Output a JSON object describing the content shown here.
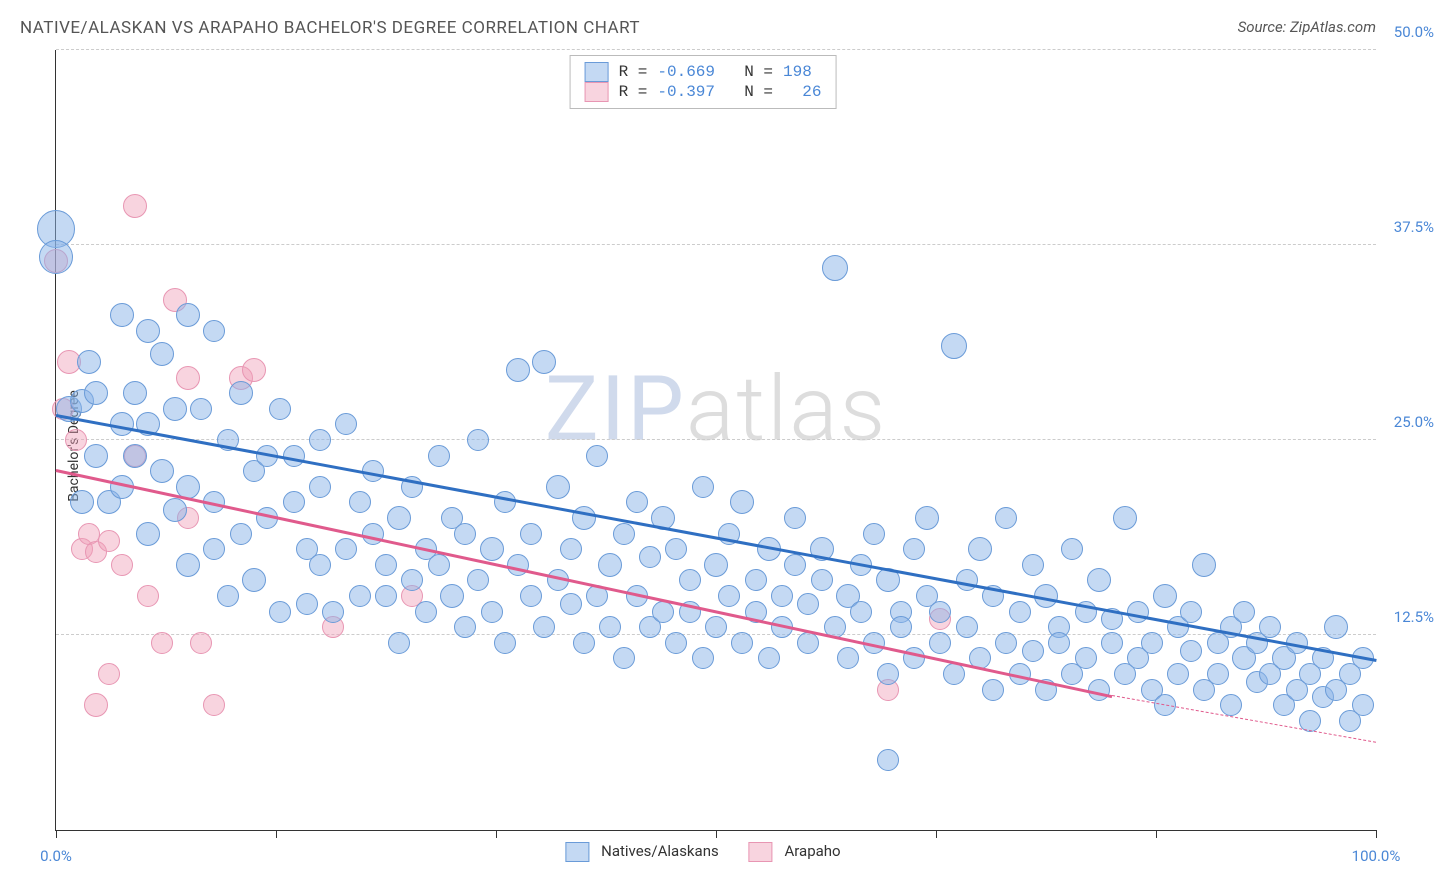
{
  "title": "NATIVE/ALASKAN VS ARAPAHO BACHELOR'S DEGREE CORRELATION CHART",
  "source": "Source: ZipAtlas.com",
  "ylabel": "Bachelor's Degree",
  "watermark_zip": "ZIP",
  "watermark_rest": "atlas",
  "chart": {
    "type": "scatter",
    "xlim": [
      0,
      100
    ],
    "ylim": [
      0,
      50
    ],
    "x_ticks": [
      0,
      16.67,
      33.33,
      50,
      66.67,
      83.33,
      100
    ],
    "x_tick_labels": {
      "0": "0.0%",
      "100": "100.0%"
    },
    "y_ticks": [
      12.5,
      25.0,
      37.5,
      50.0
    ],
    "y_tick_labels": [
      "12.5%",
      "25.0%",
      "37.5%",
      "50.0%"
    ],
    "grid_color": "#cccccc",
    "axis_color": "#333333",
    "label_color": "#4a87d6",
    "plot_bg": "#ffffff"
  },
  "series": {
    "blue": {
      "label": "Natives/Alaskans",
      "fill": "rgba(137,179,231,0.5)",
      "stroke": "#6a9bd8",
      "trend_color": "#2f6fc2",
      "R": "-0.669",
      "N": "198",
      "trend": {
        "x1": 0,
        "y1": 26.5,
        "x2": 100,
        "y2": 10.8
      },
      "points": [
        [
          0,
          38.5,
          18
        ],
        [
          0,
          36.7,
          16
        ],
        [
          1,
          27,
          12
        ],
        [
          2,
          27.5,
          11
        ],
        [
          2,
          21,
          11
        ],
        [
          2.5,
          30,
          11
        ],
        [
          3,
          24,
          11
        ],
        [
          3,
          28,
          11
        ],
        [
          4,
          21,
          11
        ],
        [
          5,
          33,
          11
        ],
        [
          5,
          26,
          11
        ],
        [
          5,
          22,
          11
        ],
        [
          6,
          24,
          11
        ],
        [
          6,
          28,
          11
        ],
        [
          7,
          32,
          11
        ],
        [
          7,
          19,
          11
        ],
        [
          7,
          26,
          11
        ],
        [
          8,
          30.5,
          11
        ],
        [
          8,
          23,
          11
        ],
        [
          9,
          27,
          11
        ],
        [
          9,
          20.5,
          11
        ],
        [
          10,
          33,
          11
        ],
        [
          10,
          22,
          11
        ],
        [
          10,
          17,
          11
        ],
        [
          11,
          27,
          10
        ],
        [
          12,
          32,
          10
        ],
        [
          12,
          21,
          10
        ],
        [
          12,
          18,
          10
        ],
        [
          13,
          25,
          10
        ],
        [
          13,
          15,
          10
        ],
        [
          14,
          28,
          11
        ],
        [
          14,
          19,
          10
        ],
        [
          15,
          23,
          10
        ],
        [
          15,
          16,
          11
        ],
        [
          16,
          24,
          10
        ],
        [
          16,
          20,
          10
        ],
        [
          17,
          27,
          10
        ],
        [
          17,
          14,
          10
        ],
        [
          18,
          21,
          10
        ],
        [
          18,
          24,
          10
        ],
        [
          19,
          18,
          10
        ],
        [
          19,
          14.5,
          10
        ],
        [
          20,
          25,
          10
        ],
        [
          20,
          17,
          10
        ],
        [
          20,
          22,
          10
        ],
        [
          21,
          14,
          10
        ],
        [
          22,
          26,
          10
        ],
        [
          22,
          18,
          10
        ],
        [
          23,
          21,
          10
        ],
        [
          23,
          15,
          10
        ],
        [
          24,
          19,
          10
        ],
        [
          24,
          23,
          10
        ],
        [
          25,
          17,
          10
        ],
        [
          25,
          15,
          10
        ],
        [
          26,
          20,
          11
        ],
        [
          26,
          12,
          10
        ],
        [
          27,
          22,
          10
        ],
        [
          27,
          16,
          10
        ],
        [
          28,
          18,
          10
        ],
        [
          28,
          14,
          10
        ],
        [
          29,
          24,
          10
        ],
        [
          29,
          17,
          10
        ],
        [
          30,
          15,
          11
        ],
        [
          30,
          20,
          10
        ],
        [
          31,
          13,
          10
        ],
        [
          31,
          19,
          10
        ],
        [
          32,
          25,
          10
        ],
        [
          32,
          16,
          10
        ],
        [
          33,
          18,
          11
        ],
        [
          33,
          14,
          10
        ],
        [
          34,
          21,
          10
        ],
        [
          34,
          12,
          10
        ],
        [
          35,
          29.5,
          11
        ],
        [
          35,
          17,
          10
        ],
        [
          36,
          15,
          10
        ],
        [
          36,
          19,
          10
        ],
        [
          37,
          30,
          11
        ],
        [
          37,
          13,
          10
        ],
        [
          38,
          22,
          11
        ],
        [
          38,
          16,
          10
        ],
        [
          39,
          18,
          10
        ],
        [
          39,
          14.5,
          10
        ],
        [
          40,
          20,
          11
        ],
        [
          40,
          12,
          10
        ],
        [
          41,
          24,
          10
        ],
        [
          41,
          15,
          10
        ],
        [
          42,
          17,
          11
        ],
        [
          42,
          13,
          10
        ],
        [
          43,
          19,
          10
        ],
        [
          43,
          11,
          10
        ],
        [
          44,
          21,
          10
        ],
        [
          44,
          15,
          10
        ],
        [
          45,
          13,
          10
        ],
        [
          45,
          17.5,
          10
        ],
        [
          46,
          20,
          11
        ],
        [
          46,
          14,
          10
        ],
        [
          47,
          18,
          10
        ],
        [
          47,
          12,
          10
        ],
        [
          48,
          16,
          10
        ],
        [
          48,
          14,
          10
        ],
        [
          49,
          22,
          10
        ],
        [
          49,
          11,
          10
        ],
        [
          50,
          17,
          11
        ],
        [
          50,
          13,
          10
        ],
        [
          51,
          19,
          10
        ],
        [
          51,
          15,
          10
        ],
        [
          52,
          21,
          11
        ],
        [
          52,
          12,
          10
        ],
        [
          53,
          16,
          10
        ],
        [
          53,
          14,
          10
        ],
        [
          54,
          18,
          11
        ],
        [
          54,
          11,
          10
        ],
        [
          55,
          15,
          10
        ],
        [
          55,
          13,
          10
        ],
        [
          56,
          20,
          10
        ],
        [
          56,
          17,
          10
        ],
        [
          57,
          12,
          10
        ],
        [
          57,
          14.5,
          10
        ],
        [
          58,
          18,
          11
        ],
        [
          58,
          16,
          10
        ],
        [
          59,
          36,
          12
        ],
        [
          59,
          13,
          10
        ],
        [
          60,
          15,
          11
        ],
        [
          60,
          11,
          10
        ],
        [
          61,
          17,
          10
        ],
        [
          61,
          14,
          10
        ],
        [
          62,
          19,
          10
        ],
        [
          62,
          12,
          10
        ],
        [
          63,
          16,
          11
        ],
        [
          63,
          10,
          10
        ],
        [
          64,
          14,
          10
        ],
        [
          64,
          13,
          10
        ],
        [
          65,
          18,
          10
        ],
        [
          65,
          11,
          10
        ],
        [
          66,
          20,
          11
        ],
        [
          66,
          15,
          10
        ],
        [
          67,
          12,
          10
        ],
        [
          67,
          14,
          10
        ],
        [
          68,
          31,
          12
        ],
        [
          68,
          10,
          10
        ],
        [
          69,
          16,
          10
        ],
        [
          69,
          13,
          10
        ],
        [
          70,
          18,
          11
        ],
        [
          70,
          11,
          10
        ],
        [
          71,
          9,
          10
        ],
        [
          71,
          15,
          10
        ],
        [
          72,
          20,
          10
        ],
        [
          72,
          12,
          10
        ],
        [
          73,
          14,
          10
        ],
        [
          73,
          10,
          10
        ],
        [
          74,
          17,
          10
        ],
        [
          74,
          11.5,
          10
        ],
        [
          75,
          15,
          11
        ],
        [
          75,
          9,
          10
        ],
        [
          76,
          13,
          10
        ],
        [
          76,
          12,
          10
        ],
        [
          77,
          18,
          10
        ],
        [
          77,
          10,
          10
        ],
        [
          78,
          14,
          10
        ],
        [
          78,
          11,
          10
        ],
        [
          79,
          16,
          11
        ],
        [
          79,
          9,
          10
        ],
        [
          80,
          12,
          10
        ],
        [
          80,
          13.5,
          10
        ],
        [
          81,
          20,
          11
        ],
        [
          81,
          10,
          10
        ],
        [
          82,
          14,
          10
        ],
        [
          82,
          11,
          10
        ],
        [
          83,
          9,
          10
        ],
        [
          83,
          12,
          10
        ],
        [
          84,
          15,
          11
        ],
        [
          84,
          8,
          10
        ],
        [
          85,
          13,
          10
        ],
        [
          85,
          10,
          10
        ],
        [
          86,
          14,
          10
        ],
        [
          86,
          11.5,
          10
        ],
        [
          87,
          17,
          11
        ],
        [
          87,
          9,
          10
        ],
        [
          88,
          12,
          10
        ],
        [
          88,
          10,
          10
        ],
        [
          89,
          8,
          10
        ],
        [
          89,
          13,
          10
        ],
        [
          90,
          11,
          11
        ],
        [
          90,
          14,
          10
        ],
        [
          91,
          9.5,
          10
        ],
        [
          91,
          12,
          10
        ],
        [
          92,
          10,
          10
        ],
        [
          92,
          13,
          10
        ],
        [
          93,
          11,
          11
        ],
        [
          93,
          8,
          10
        ],
        [
          94,
          9,
          10
        ],
        [
          94,
          12,
          10
        ],
        [
          95,
          7,
          10
        ],
        [
          95,
          10,
          10
        ],
        [
          96,
          11,
          10
        ],
        [
          96,
          8.5,
          10
        ],
        [
          97,
          13,
          11
        ],
        [
          97,
          9,
          10
        ],
        [
          98,
          7,
          10
        ],
        [
          98,
          10,
          10
        ],
        [
          99,
          8,
          10
        ],
        [
          99,
          11,
          10
        ],
        [
          63,
          4.5,
          10
        ]
      ]
    },
    "pink": {
      "label": "Arapaho",
      "fill": "rgba(240,160,185,0.45)",
      "stroke": "#e896b3",
      "trend_color": "#e05a8c",
      "R": "-0.397",
      "N": "26",
      "trend": {
        "x1": 0,
        "y1": 23,
        "x2": 80,
        "y2": 8.5
      },
      "trend_ext": {
        "x1": 80,
        "y1": 8.5,
        "x2": 100,
        "y2": 5.5
      },
      "points": [
        [
          0,
          36.5,
          11
        ],
        [
          0.5,
          27,
          10
        ],
        [
          1,
          30,
          11
        ],
        [
          1.5,
          25,
          10
        ],
        [
          2,
          18,
          10
        ],
        [
          2.5,
          19,
          10
        ],
        [
          3,
          17.8,
          10
        ],
        [
          3,
          8,
          11
        ],
        [
          4,
          10,
          10
        ],
        [
          4,
          18.5,
          10
        ],
        [
          5,
          17,
          10
        ],
        [
          6,
          40,
          11
        ],
        [
          6,
          24,
          10
        ],
        [
          7,
          15,
          10
        ],
        [
          8,
          12,
          10
        ],
        [
          9,
          34,
          11
        ],
        [
          10,
          20,
          10
        ],
        [
          10,
          29,
          11
        ],
        [
          11,
          12,
          10
        ],
        [
          12,
          8,
          10
        ],
        [
          14,
          29,
          11
        ],
        [
          15,
          29.5,
          11
        ],
        [
          21,
          13,
          10
        ],
        [
          27,
          15,
          10
        ],
        [
          63,
          9,
          10
        ],
        [
          67,
          13.5,
          10
        ]
      ]
    }
  },
  "legend_bottom": [
    {
      "key": "blue"
    },
    {
      "key": "pink"
    }
  ]
}
